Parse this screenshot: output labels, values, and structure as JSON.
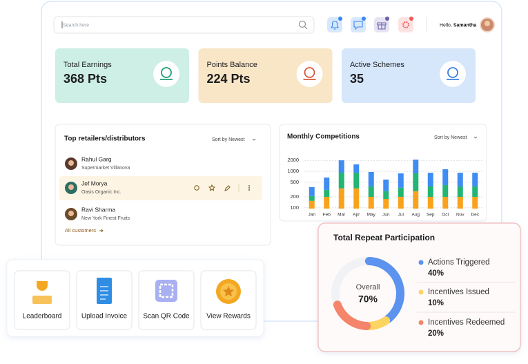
{
  "search": {
    "placeholder": "Search here"
  },
  "user": {
    "greeting": "Hello,",
    "name": "Samantha"
  },
  "stats": [
    {
      "label": "Total Earnings",
      "value": "368 Pts"
    },
    {
      "label": "Points Balance",
      "value": "224 Pts"
    },
    {
      "label": "Active Schemes",
      "value": "35"
    }
  ],
  "retailers": {
    "title": "Top retailers/distributors",
    "sort": "Sort by Newest",
    "items": [
      {
        "name": "Rahul Garg",
        "subtitle": "Supermarket Villanova"
      },
      {
        "name": "Jef Morya",
        "subtitle": "Oasis Organic Inc."
      },
      {
        "name": "Ravi Sharma",
        "subtitle": "New York Finest Fruits"
      }
    ],
    "link": "All customers"
  },
  "actions": [
    "Leaderboard",
    "Upload Invoice",
    "Scan QR Code",
    "View Rewards"
  ],
  "chart_data": [
    {
      "type": "bar",
      "title": "Monthly Competitions",
      "sort": "Sort by Newest",
      "stacked": true,
      "log_scale": true,
      "grid": true,
      "categories": [
        "Jan",
        "Feb",
        "Mar",
        "Apr",
        "May",
        "Jun",
        "Jul",
        "Aug",
        "Sep",
        "Oct",
        "Nov",
        "Dec"
      ],
      "series": [
        {
          "color": "#f9a21b",
          "values": [
            155,
            200,
            340,
            340,
            200,
            175,
            200,
            285,
            200,
            200,
            200,
            200
          ]
        },
        {
          "color": "#22b573",
          "values": [
            55,
            110,
            580,
            580,
            185,
            110,
            155,
            595,
            185,
            220,
            185,
            185
          ]
        },
        {
          "color": "#3f8cf2",
          "values": [
            160,
            365,
            1085,
            630,
            575,
            310,
            525,
            1215,
            530,
            720,
            530,
            530
          ]
        }
      ],
      "ylim": [
        95,
        2400
      ],
      "yticks": [
        100,
        200,
        500,
        1000,
        2000
      ]
    },
    {
      "type": "donut",
      "title": "Total Repeat Participation",
      "annotations": [
        "Overall",
        "70%"
      ],
      "categories": [
        "Actions Triggered",
        "Incentives Issued",
        "Incentives Redeemed"
      ],
      "values": [
        40,
        10,
        20
      ],
      "value_labels": [
        "40%",
        "10%",
        "20%"
      ],
      "colors": [
        "#5b93ee",
        "#fcd462",
        "#f4846a"
      ]
    }
  ]
}
